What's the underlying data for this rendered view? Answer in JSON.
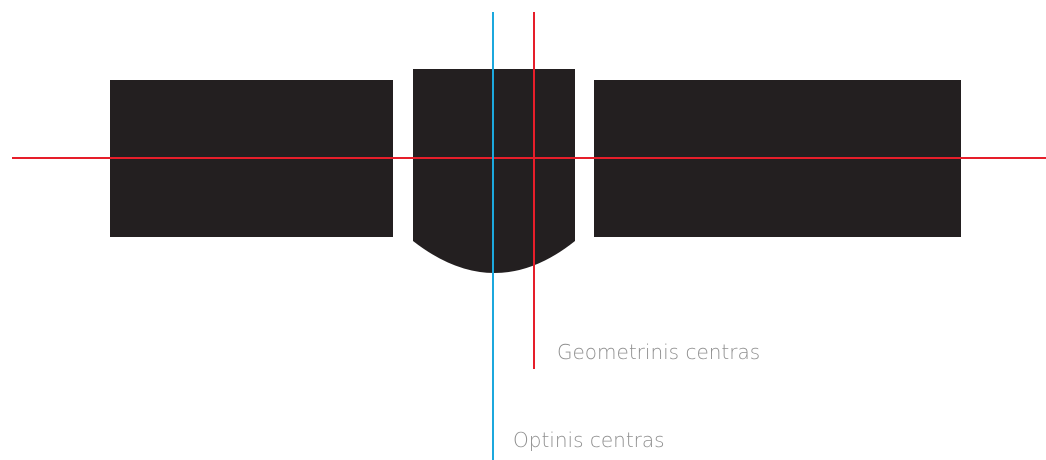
{
  "labels": {
    "geometric_center": "Geometrinis centras",
    "optical_center": "Optinis centras"
  },
  "colors": {
    "shape_fill": "#231f20",
    "geometric_line": "#e61e2a",
    "optical_line": "#1ca8dd",
    "label_text": "#8f8f8f",
    "background": "#ffffff"
  }
}
